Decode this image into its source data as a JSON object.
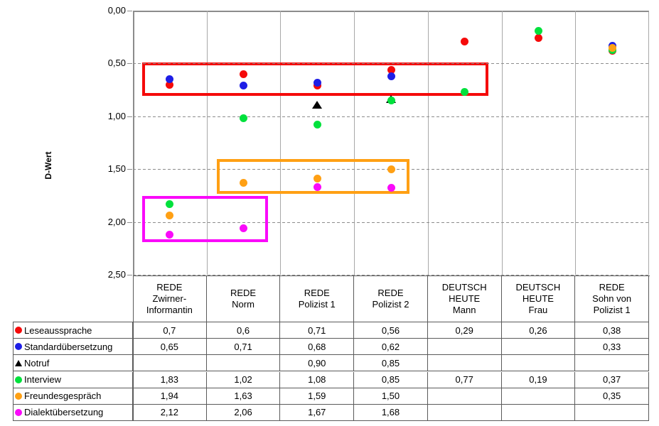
{
  "chart_data": {
    "type": "scatter",
    "title": "",
    "ylabel": "D-Wert",
    "y_axis": {
      "min": 0,
      "max": 2.5,
      "inverted": true,
      "tick_step": 0.5,
      "tick_labels": [
        "0,00",
        "0,50",
        "1,00",
        "1,50",
        "2,00",
        "2,50"
      ]
    },
    "grid": {
      "horizontal": "dashed",
      "vertical": "solid"
    },
    "legend_position": "table-left-column",
    "categories": [
      [
        "REDE",
        "Zwirner-",
        "Informantin"
      ],
      [
        "REDE",
        "Norm"
      ],
      [
        "REDE",
        "Polizist 1"
      ],
      [
        "REDE",
        "Polizist 2"
      ],
      [
        "DEUTSCH",
        "HEUTE",
        "Mann"
      ],
      [
        "DEUTSCH",
        "HEUTE",
        "Frau"
      ],
      [
        "REDE",
        "Sohn von",
        "Polizist 1"
      ]
    ],
    "series": [
      {
        "name": "Leseaussprache",
        "marker": "circle",
        "color": "#f50a0a",
        "values": [
          0.7,
          0.6,
          0.71,
          0.56,
          0.29,
          0.26,
          0.38
        ],
        "display": [
          "0,7",
          "0,6",
          "0,71",
          "0,56",
          "0,29",
          "0,26",
          "0,38"
        ]
      },
      {
        "name": "Standardübersetzung",
        "marker": "circle",
        "color": "#1e1ee6",
        "values": [
          0.65,
          0.71,
          0.68,
          0.62,
          null,
          null,
          0.33
        ],
        "display": [
          "0,65",
          "0,71",
          "0,68",
          "0,62",
          "",
          "",
          "0,33"
        ]
      },
      {
        "name": "Notruf",
        "marker": "triangle",
        "color": "#000000",
        "values": [
          null,
          null,
          0.9,
          0.85,
          null,
          null,
          null
        ],
        "display": [
          "",
          "",
          "0,90",
          "0,85",
          "",
          "",
          ""
        ]
      },
      {
        "name": "Interview",
        "marker": "circle",
        "color": "#00e13c",
        "values": [
          1.83,
          1.02,
          1.08,
          0.85,
          0.77,
          0.19,
          0.37
        ],
        "display": [
          "1,83",
          "1,02",
          "1,08",
          "0,85",
          "0,77",
          "0,19",
          "0,37"
        ]
      },
      {
        "name": "Freundesgespräch",
        "marker": "circle",
        "color": "#ffa014",
        "values": [
          1.94,
          1.63,
          1.59,
          1.5,
          null,
          null,
          0.35
        ],
        "display": [
          "1,94",
          "1,63",
          "1,59",
          "1,50",
          "",
          "",
          "0,35"
        ]
      },
      {
        "name": "Dialektübersetzung",
        "marker": "circle",
        "color": "#fa0afa",
        "values": [
          2.12,
          2.06,
          1.67,
          1.68,
          null,
          null,
          null
        ],
        "display": [
          "2,12",
          "2,06",
          "1,67",
          "1,68",
          "",
          "",
          ""
        ]
      }
    ],
    "annotations": [
      {
        "name": "red-box",
        "color": "#f50a0a",
        "col_start": 0.125,
        "col_end": 4.82,
        "y_top": 0.493,
        "y_bottom": 0.806
      },
      {
        "name": "orange-box",
        "color": "#ffa014",
        "col_start": 1.138,
        "col_end": 3.75,
        "y_top": 1.405,
        "y_bottom": 1.735
      },
      {
        "name": "magenta-box",
        "color": "#fa0afa",
        "col_start": 0.125,
        "col_end": 1.832,
        "y_top": 1.755,
        "y_bottom": 2.19
      }
    ]
  }
}
